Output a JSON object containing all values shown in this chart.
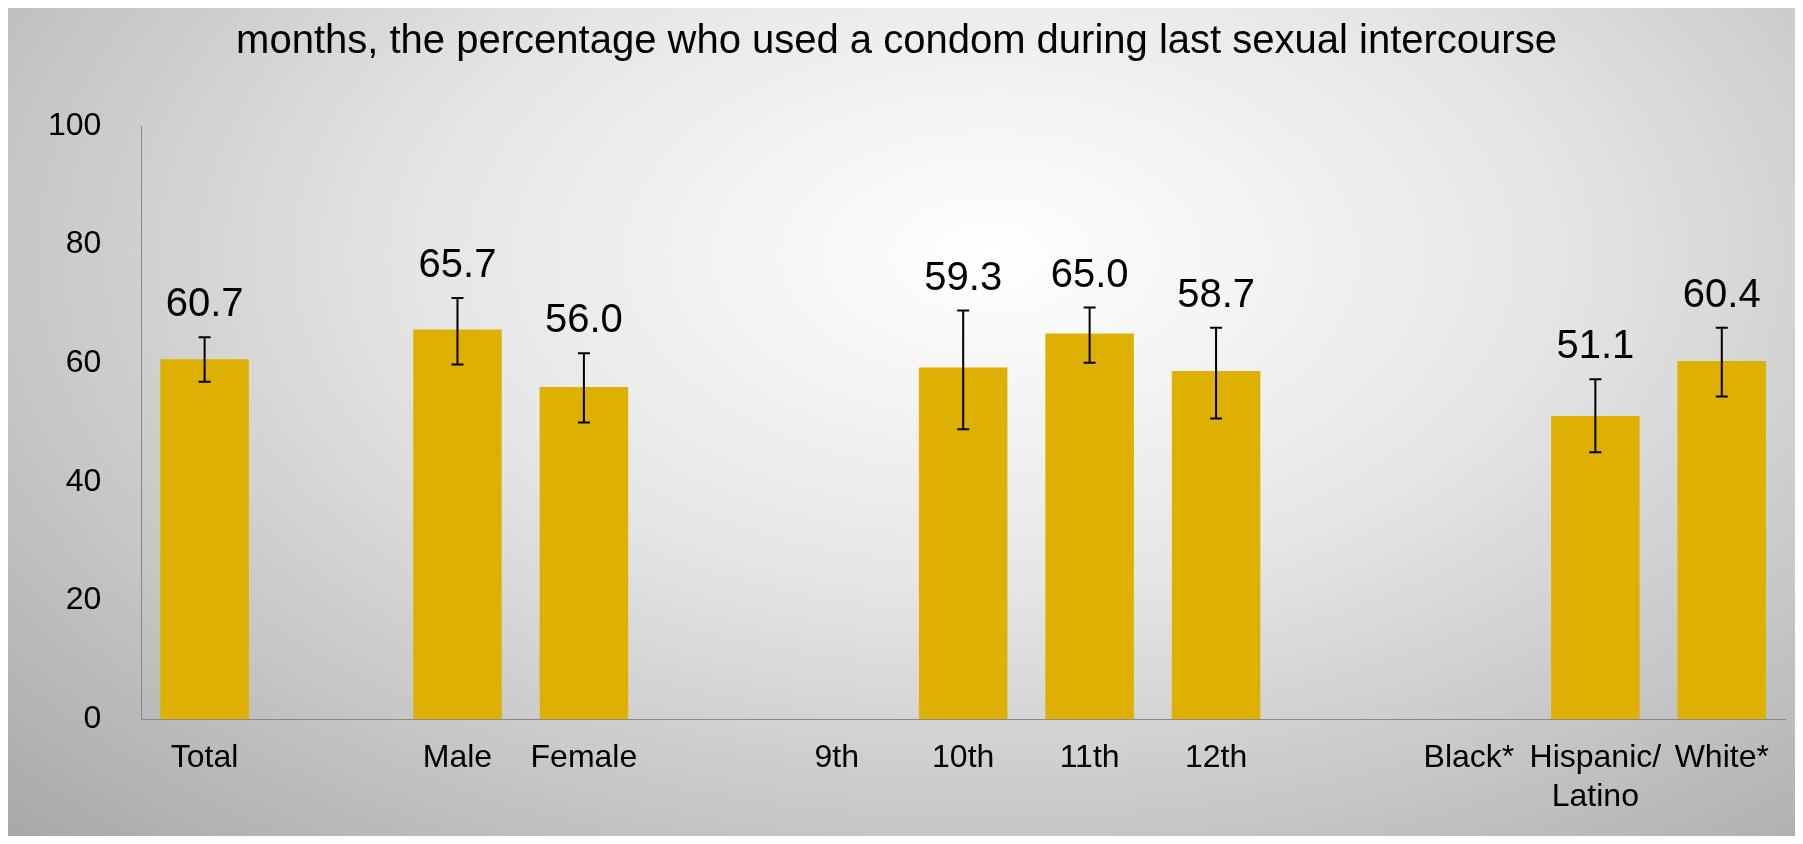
{
  "chart_data": {
    "type": "bar",
    "title": "months, the percentage who used a condom during last sexual intercourse",
    "categories": [
      "Total",
      null,
      "Male",
      "Female",
      null,
      "9th",
      "10th",
      "11th",
      "12th",
      null,
      "Black*",
      "Hispanic/Latino",
      "White*"
    ],
    "values": [
      60.7,
      null,
      65.7,
      56.0,
      null,
      null,
      59.3,
      65.0,
      58.7,
      null,
      null,
      51.1,
      60.4
    ],
    "errors": [
      [
        56.9,
        64.4
      ],
      null,
      [
        59.8,
        71.0
      ],
      [
        50.0,
        61.7
      ],
      null,
      null,
      [
        48.9,
        68.9
      ],
      [
        60.1,
        69.4
      ],
      [
        50.7,
        66.0
      ],
      null,
      null,
      [
        45.0,
        57.3
      ],
      [
        54.4,
        66.0
      ]
    ],
    "value_labels": [
      "60.7",
      null,
      "65.7",
      "56.0",
      null,
      null,
      "59.3",
      "65.0",
      "58.7",
      null,
      null,
      "51.1",
      "60.4"
    ],
    "color": "#deb003",
    "ylim": [
      0,
      100
    ],
    "yticks": [
      0,
      20,
      40,
      60,
      80,
      100
    ],
    "grid": false,
    "legend": false
  }
}
